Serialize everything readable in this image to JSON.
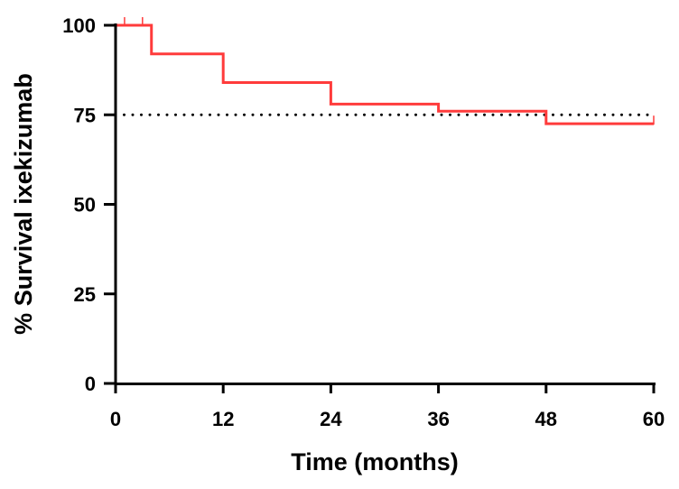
{
  "chart_data": {
    "type": "line",
    "step": true,
    "xlabel": "Time (months)",
    "ylabel": "% Survival ixekizumab",
    "xlim": [
      0,
      60
    ],
    "ylim": [
      0,
      100
    ],
    "x_ticks": [
      "0",
      "12",
      "24",
      "36",
      "48",
      "60"
    ],
    "y_ticks": [
      "0",
      "25",
      "50",
      "75",
      "100"
    ],
    "grid": false,
    "series": [
      {
        "color": "#ff3b3b",
        "x": [
          0,
          4,
          4,
          12,
          12,
          24,
          24,
          36,
          36,
          48,
          48,
          60
        ],
        "y": [
          100,
          100,
          92,
          92,
          84,
          84,
          78,
          78,
          76,
          76,
          72.5,
          72.5
        ],
        "censor_marks": [
          {
            "x": 1,
            "y": 100
          },
          {
            "x": 3,
            "y": 100
          },
          {
            "x": 60,
            "y": 72.5
          }
        ]
      }
    ],
    "reference_line": {
      "y": 75,
      "style": "dotted",
      "color": "#000000"
    }
  }
}
